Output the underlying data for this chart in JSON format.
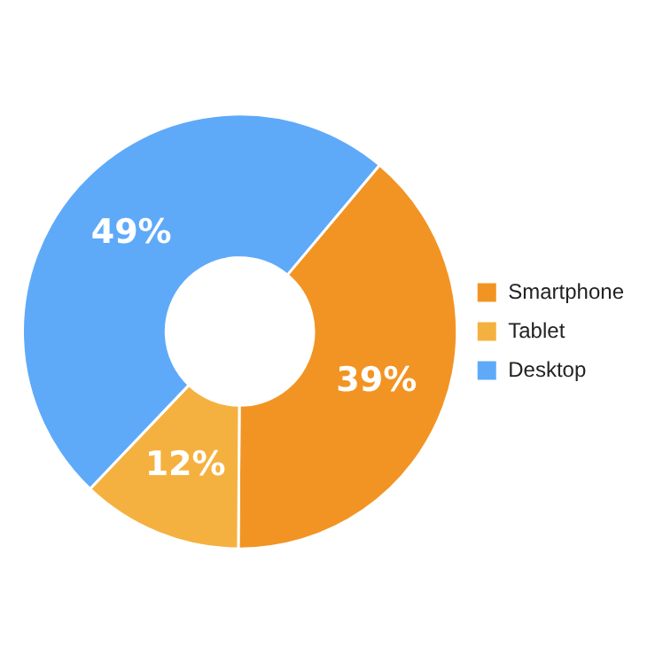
{
  "chart_data": {
    "type": "donut",
    "categories": [
      "Smartphone",
      "Tablet",
      "Desktop"
    ],
    "values": [
      39,
      12,
      49
    ],
    "colors": [
      "#f29423",
      "#f5b13f",
      "#5eaaf9"
    ],
    "value_labels": [
      "39%",
      "12%",
      "49%"
    ],
    "legend": "right"
  }
}
